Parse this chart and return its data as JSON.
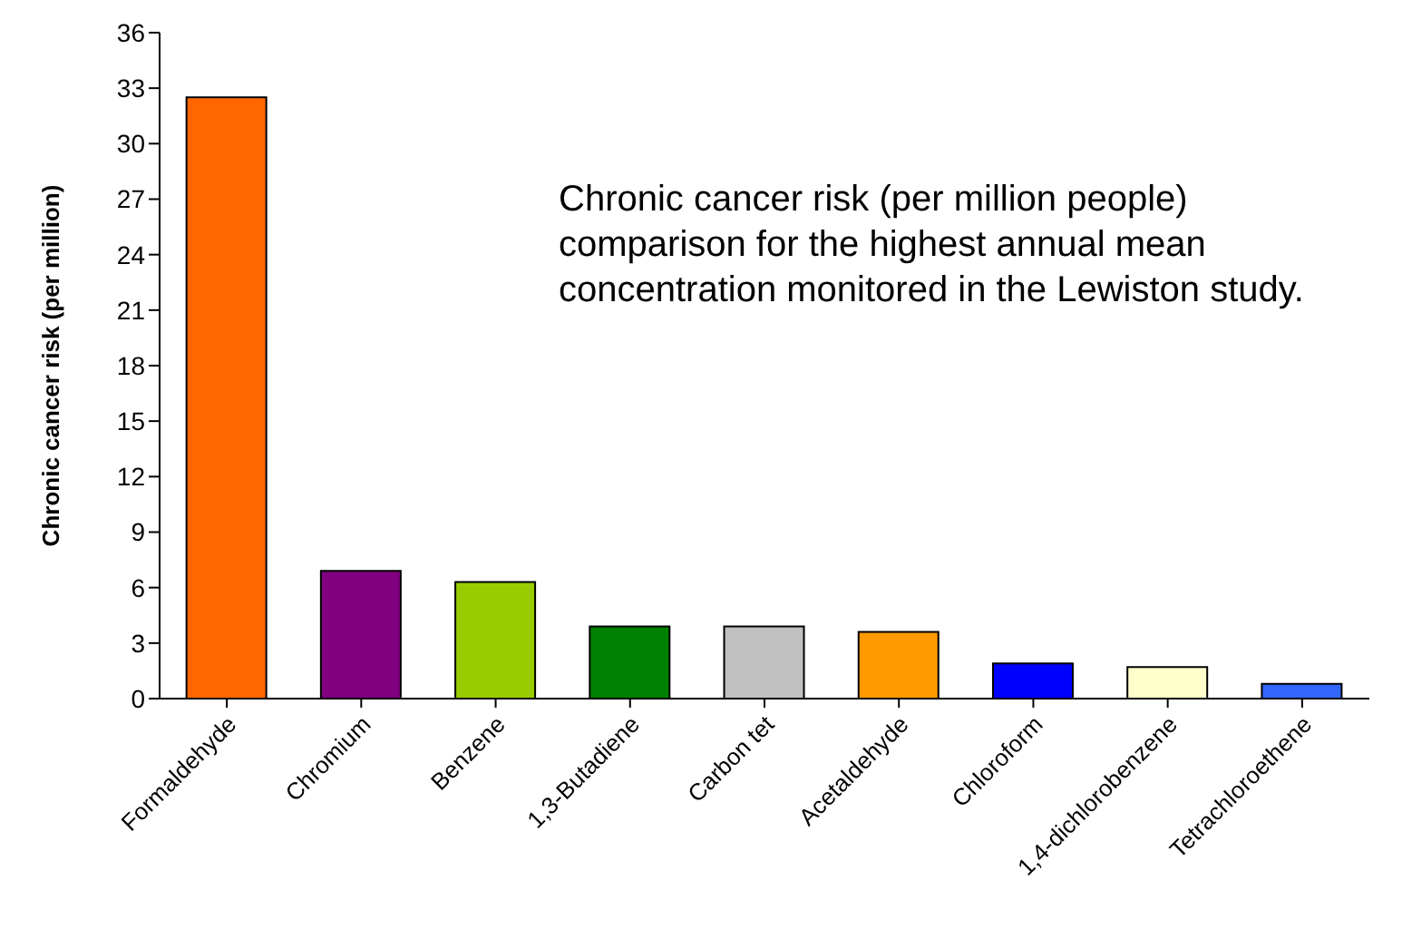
{
  "chart_data": {
    "type": "bar",
    "ylabel": "Chronic cancer risk (per million)",
    "annotations": [
      "Chronic cancer risk (per million people)\ncomparison for the highest annual mean\nconcentration monitored in the Lewiston study."
    ],
    "categories": [
      "Formaldehyde",
      "Chromium",
      "Benzene",
      "1,3-Butadiene",
      "Carbon tet",
      "Acetaldehyde",
      "Chloroform",
      "1,4-dichlorobenzene",
      "Tetrachloroethene"
    ],
    "values": [
      32.5,
      6.9,
      6.3,
      3.9,
      3.9,
      3.6,
      1.9,
      1.7,
      0.8
    ],
    "colors": [
      "#ff6600",
      "#800080",
      "#99cc00",
      "#008000",
      "#c0c0c0",
      "#ff9900",
      "#0000ff",
      "#ffffcc",
      "#3366ff"
    ],
    "ylim": [
      0,
      36
    ],
    "yticks": [
      0,
      3,
      6,
      9,
      12,
      15,
      18,
      21,
      24,
      27,
      30,
      33,
      36
    ],
    "grid": false
  }
}
